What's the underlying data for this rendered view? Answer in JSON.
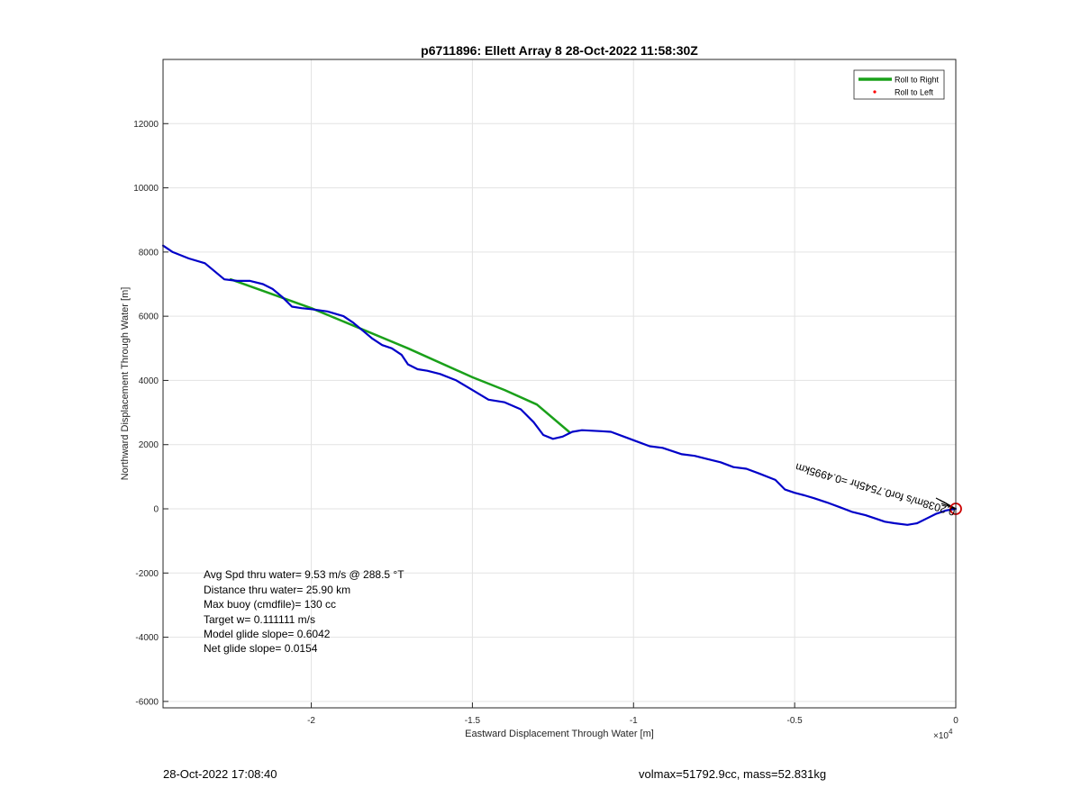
{
  "chart_data": {
    "type": "line",
    "title": "p6711896: Ellett Array 8 28-Oct-2022 11:58:30Z",
    "xlabel": "Eastward Displacement Through Water [m]",
    "ylabel": "Northward Displacement Through Water [m]",
    "x_exponent_label": "×10",
    "x_exponent_power": "4",
    "xlim": [
      -24600,
      0
    ],
    "ylim": [
      -6200,
      14000
    ],
    "xticks": [
      -20000,
      -15000,
      -10000,
      -5000,
      0
    ],
    "xtick_labels": [
      "-2",
      "-1.5",
      "-1",
      "-0.5",
      "0"
    ],
    "yticks": [
      -6000,
      -4000,
      -2000,
      0,
      2000,
      4000,
      6000,
      8000,
      10000,
      12000
    ],
    "ytick_labels": [
      "-6000",
      "-4000",
      "-2000",
      "0",
      "2000",
      "4000",
      "6000",
      "8000",
      "10000",
      "12000"
    ],
    "grid": true,
    "legend_position": "top-right",
    "legend": [
      {
        "label": "Roll to Right",
        "color": "#1aa01a",
        "marker": "line"
      },
      {
        "label": "Roll to Left",
        "color": "#ff0000",
        "marker": "dot"
      }
    ],
    "series": [
      {
        "name": "Roll to Right",
        "color": "#1aa01a",
        "x": [
          -22500,
          -20000,
          -17000,
          -15000,
          -14000,
          -13000,
          -12000
        ],
        "y": [
          7150,
          6250,
          5000,
          4100,
          3700,
          3250,
          2400
        ]
      },
      {
        "color": "#0000c8",
        "x": [
          -24600,
          -24300,
          -23800,
          -23300,
          -23000,
          -22700,
          -22300,
          -21900,
          -21500,
          -21200,
          -20900,
          -20600,
          -20300,
          -20000,
          -19500,
          -19000,
          -18700,
          -18400,
          -18100,
          -17800,
          -17500,
          -17200,
          -17000,
          -16700,
          -16400,
          -16000,
          -15500,
          -15000,
          -14500,
          -14000,
          -13500,
          -13100,
          -12800,
          -12500,
          -12200,
          -11900,
          -11600,
          -11000,
          -10700,
          -10300,
          -9900,
          -9500,
          -9100,
          -8500,
          -8100,
          -7700,
          -7300,
          -6900,
          -6500,
          -6100,
          -5600,
          -5300,
          -5000,
          -4700,
          -4400,
          -4000,
          -3600,
          -3200,
          -2800,
          -2500,
          -2200,
          -1900,
          -1500,
          -1200,
          -900,
          -600,
          -300,
          0
        ],
        "y": [
          8200,
          8000,
          7800,
          7650,
          7400,
          7150,
          7100,
          7100,
          7000,
          6850,
          6600,
          6300,
          6250,
          6220,
          6150,
          6000,
          5800,
          5550,
          5300,
          5100,
          5000,
          4800,
          4500,
          4350,
          4300,
          4200,
          4000,
          3700,
          3400,
          3320,
          3100,
          2700,
          2300,
          2180,
          2250,
          2400,
          2450,
          2420,
          2400,
          2250,
          2100,
          1950,
          1900,
          1700,
          1650,
          1550,
          1450,
          1300,
          1250,
          1100,
          900,
          600,
          500,
          420,
          330,
          200,
          50,
          -100,
          -200,
          -300,
          -400,
          -450,
          -500,
          -450,
          -300,
          -150,
          -50,
          0
        ]
      }
    ],
    "end_marker": {
      "x": 0,
      "y": 0,
      "color": "#cc0000"
    },
    "rotated_annotation": "0.2038m/s for0.7545hr =0.4995km",
    "annotations": [
      "Avg Spd thru water=  9.53 m/s @ 288.5 °T",
      "Distance thru water= 25.90 km",
      "Max buoy (cmdfile)= 130 cc",
      "Target w= 0.111111 m/s",
      "Model glide slope= 0.6042",
      "Net glide slope= 0.0154"
    ]
  },
  "footer": {
    "left": "28-Oct-2022 17:08:40",
    "right": "volmax=51792.9cc, mass=52.831kg"
  }
}
